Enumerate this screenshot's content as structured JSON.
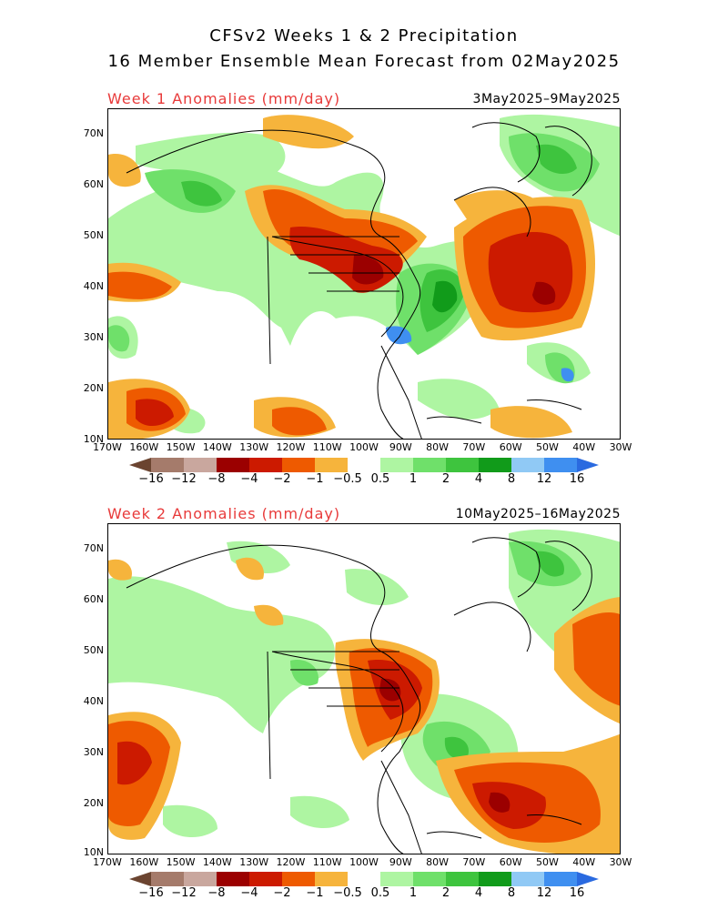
{
  "title_line1": "CFSv2 Weeks 1 & 2 Precipitation",
  "title_line2": "16 Member Ensemble Mean Forecast from 02May2025",
  "panels": [
    {
      "label": "Week 1 Anomalies (mm/day)",
      "dates": "3May2025–9May2025"
    },
    {
      "label": "Week 2 Anomalies (mm/day)",
      "dates": "10May2025–16May2025"
    }
  ],
  "lat_labels": [
    "70N",
    "60N",
    "50N",
    "40N",
    "30N",
    "20N",
    "10N"
  ],
  "lon_labels": [
    "170W",
    "160W",
    "150W",
    "140W",
    "130W",
    "120W",
    "110W",
    "100W",
    "90W",
    "80W",
    "70W",
    "60W",
    "50W",
    "40W",
    "30W"
  ],
  "colorbar": {
    "labels": [
      "−16",
      "−12",
      "−8",
      "−4",
      "−2",
      "−1",
      "−0.5",
      "0.5",
      "1",
      "2",
      "4",
      "8",
      "12",
      "16"
    ],
    "colors": [
      "#6b4430",
      "#a57b6b",
      "#c9a79e",
      "#9b0000",
      "#cc1a00",
      "#ee5a00",
      "#f6b43c",
      "#ffffff",
      "#aef5a2",
      "#6fe06a",
      "#3ec43e",
      "#119b1a",
      "#90c9f5",
      "#3f8ff0",
      "#2a6ae0"
    ]
  },
  "colors": {
    "dry_strong": "#cc1a00",
    "dry_very": "#9b0000",
    "dry_mod": "#ee5a00",
    "dry_light": "#f6b43c",
    "wet_light": "#aef5a2",
    "wet_mod": "#6fe06a",
    "wet_more": "#3ec43e",
    "wet_strong": "#119b1a",
    "wet_blue": "#3f8ff0",
    "wet_lightblue": "#90c9f5",
    "label_red": "#e83a3a"
  }
}
